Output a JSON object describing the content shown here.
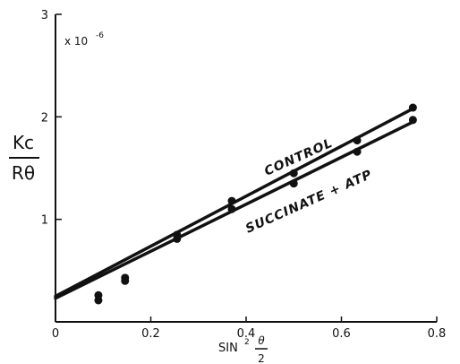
{
  "chart_data": {
    "type": "scatter",
    "title": "",
    "multiplier_label": "x 10",
    "multiplier_exponent": "-6",
    "ylabel_numerator": "Kc",
    "ylabel_denominator": "Rθ",
    "xlabel": "SIN",
    "xlabel_power": "2",
    "xlabel_frac_num": "θ",
    "xlabel_frac_den": "2",
    "xlim": [
      0,
      0.8
    ],
    "ylim": [
      0,
      3
    ],
    "x_ticks": [
      {
        "value": 0,
        "label": "0"
      },
      {
        "value": 0.2,
        "label": "0.2"
      },
      {
        "value": 0.4,
        "label": "0.4"
      },
      {
        "value": 0.6,
        "label": "0.6"
      },
      {
        "value": 0.8,
        "label": "0.8"
      }
    ],
    "y_ticks": [
      {
        "value": 1,
        "label": "1"
      },
      {
        "value": 2,
        "label": "2"
      },
      {
        "value": 3,
        "label": "3"
      }
    ],
    "grid": false,
    "series": [
      {
        "name": "CONTROL",
        "points": [
          {
            "x": 0.09,
            "y": 0.26
          },
          {
            "x": 0.146,
            "y": 0.43
          },
          {
            "x": 0.255,
            "y": 0.85
          },
          {
            "x": 0.37,
            "y": 1.18
          },
          {
            "x": 0.5,
            "y": 1.45
          },
          {
            "x": 0.633,
            "y": 1.77
          },
          {
            "x": 0.75,
            "y": 2.09
          }
        ],
        "fit_line": {
          "x": [
            0,
            0.75
          ],
          "y": [
            0.25,
            2.08
          ]
        }
      },
      {
        "name": "SUCCINATE + ATP",
        "points": [
          {
            "x": 0.09,
            "y": 0.21
          },
          {
            "x": 0.146,
            "y": 0.4
          },
          {
            "x": 0.255,
            "y": 0.81
          },
          {
            "x": 0.37,
            "y": 1.1
          },
          {
            "x": 0.5,
            "y": 1.35
          },
          {
            "x": 0.633,
            "y": 1.66
          },
          {
            "x": 0.75,
            "y": 1.97
          }
        ],
        "fit_line": {
          "x": [
            0,
            0.75
          ],
          "y": [
            0.23,
            1.95
          ]
        }
      }
    ]
  }
}
